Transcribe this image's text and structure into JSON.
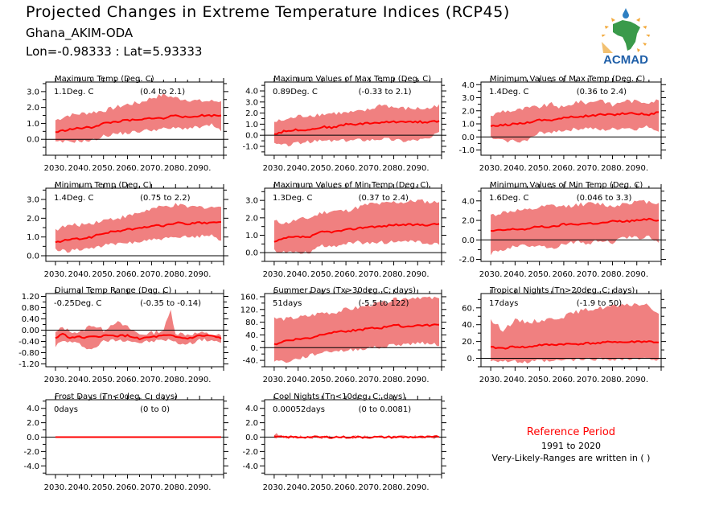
{
  "header": {
    "title": "Projected Changes in Extreme Temperature Indices (RCP45)",
    "station": "Ghana_AKIM-ODA",
    "coords": "Lon=-0.98333 : Lat=5.93333"
  },
  "logo": {
    "text": "ACMAD",
    "colors": {
      "text": "#1f5fa8",
      "map": "#3a9a4a",
      "rays": "#f2a93b",
      "drop": "#2e7fc2"
    }
  },
  "reference": {
    "title": "Reference Period",
    "years": "1991 to 2020",
    "note": "Very-Likely-Ranges are written in ( )"
  },
  "colors": {
    "band": "#f08080",
    "line": "#ff0000",
    "axis": "#000000"
  },
  "chart_data": [
    {
      "type": "area",
      "title": "Maximum Temp (Deg. C)",
      "summary": "1.1Deg. C",
      "range": "(0.4 to 2.1)",
      "xlim": [
        2026,
        2100
      ],
      "ylim": [
        -1.0,
        3.6
      ],
      "xticks": [
        2030,
        2040,
        2050,
        2060,
        2070,
        2080,
        2090
      ],
      "xtick_labels": [
        "2030.",
        "2040.",
        "2050.",
        "2060.",
        "2070.",
        "2080.",
        "2090."
      ],
      "yticks": [
        0,
        1,
        2,
        3
      ],
      "ytick_labels": [
        "0.0",
        "1.0",
        "2.0",
        "3.0"
      ],
      "x": [
        2030,
        2035,
        2040,
        2045,
        2050,
        2055,
        2060,
        2065,
        2070,
        2075,
        2080,
        2085,
        2090,
        2095,
        2099
      ],
      "median": [
        0.45,
        0.6,
        0.7,
        0.75,
        1.0,
        1.1,
        1.2,
        1.2,
        1.35,
        1.3,
        1.55,
        1.35,
        1.5,
        1.5,
        1.5
      ],
      "lower": [
        -0.2,
        -0.15,
        -0.1,
        -0.1,
        0.2,
        0.35,
        0.4,
        0.5,
        0.6,
        0.65,
        0.7,
        0.7,
        0.75,
        0.9,
        0.5
      ],
      "upper": [
        1.2,
        1.5,
        1.6,
        1.7,
        1.8,
        2.0,
        2.2,
        2.3,
        2.6,
        2.8,
        2.6,
        2.5,
        2.4,
        2.4,
        2.4
      ]
    },
    {
      "type": "area",
      "title": "Maximum Values of Max Temp (Deg. C)",
      "summary": "0.89Deg. C",
      "range": "(-0.33 to 2.1)",
      "xlim": [
        2026,
        2100
      ],
      "ylim": [
        -1.8,
        4.8
      ],
      "xticks": [
        2030,
        2040,
        2050,
        2060,
        2070,
        2080,
        2090
      ],
      "xtick_labels": [
        "2030.",
        "2040.",
        "2050.",
        "2060.",
        "2070.",
        "2080.",
        "2090."
      ],
      "yticks": [
        -1,
        0,
        1,
        2,
        3,
        4
      ],
      "ytick_labels": [
        "-1.0",
        "0.0",
        "1.0",
        "2.0",
        "3.0",
        "4.0"
      ],
      "x": [
        2030,
        2035,
        2040,
        2045,
        2050,
        2055,
        2060,
        2065,
        2070,
        2075,
        2080,
        2085,
        2090,
        2095,
        2099
      ],
      "median": [
        0.1,
        0.4,
        0.5,
        0.5,
        0.75,
        0.7,
        1.0,
        1.0,
        1.1,
        1.15,
        1.2,
        1.25,
        1.2,
        1.2,
        1.3
      ],
      "lower": [
        -0.8,
        -0.9,
        -0.7,
        -0.6,
        -0.5,
        -0.5,
        -0.5,
        -0.4,
        -0.4,
        -0.3,
        -0.4,
        -0.5,
        -0.4,
        -0.3,
        0.3
      ],
      "upper": [
        1.2,
        1.4,
        1.7,
        1.8,
        1.9,
        2.0,
        2.0,
        2.1,
        2.3,
        2.8,
        2.5,
        2.4,
        2.4,
        2.4,
        2.8
      ]
    },
    {
      "type": "area",
      "title": "Minimum Values of Max Temp (Deg. C)",
      "summary": "1.4Deg. C",
      "range": "(0.36 to 2.4)",
      "xlim": [
        2026,
        2100
      ],
      "ylim": [
        -1.4,
        4.2
      ],
      "xticks": [
        2030,
        2040,
        2050,
        2060,
        2070,
        2080,
        2090
      ],
      "xtick_labels": [
        "2030.",
        "2040.",
        "2050.",
        "2060.",
        "2070.",
        "2080.",
        "2090."
      ],
      "yticks": [
        -1,
        0,
        1,
        2,
        3,
        4
      ],
      "ytick_labels": [
        "-1.0",
        "0.0",
        "1.0",
        "2.0",
        "3.0",
        "4.0"
      ],
      "x": [
        2030,
        2035,
        2040,
        2045,
        2050,
        2055,
        2060,
        2065,
        2070,
        2075,
        2080,
        2085,
        2090,
        2095,
        2099
      ],
      "median": [
        0.8,
        0.9,
        1.0,
        1.1,
        1.3,
        1.3,
        1.45,
        1.55,
        1.6,
        1.7,
        1.7,
        1.8,
        1.8,
        1.7,
        1.9
      ],
      "lower": [
        -0.1,
        -0.3,
        -0.3,
        -0.3,
        0.3,
        0.4,
        0.5,
        0.6,
        0.7,
        0.5,
        0.6,
        0.7,
        0.6,
        0.8,
        0.4
      ],
      "upper": [
        1.6,
        2.0,
        2.0,
        2.2,
        2.3,
        2.5,
        2.2,
        2.7,
        2.6,
        2.9,
        2.4,
        2.8,
        2.7,
        2.7,
        2.8
      ]
    },
    {
      "type": "area",
      "title": "Minimum Temp (Deg. C)",
      "summary": "1.4Deg. C",
      "range": "(0.75 to 2.2)",
      "xlim": [
        2026,
        2100
      ],
      "ylim": [
        -0.3,
        3.6
      ],
      "xticks": [
        2030,
        2040,
        2050,
        2060,
        2070,
        2080,
        2090
      ],
      "xtick_labels": [
        "2030.",
        "2040.",
        "2050.",
        "2060.",
        "2070.",
        "2080.",
        "2090."
      ],
      "yticks": [
        0,
        1,
        2,
        3
      ],
      "ytick_labels": [
        "0.0",
        "1.0",
        "2.0",
        "3.0"
      ],
      "x": [
        2030,
        2035,
        2040,
        2045,
        2050,
        2055,
        2060,
        2065,
        2070,
        2075,
        2080,
        2085,
        2090,
        2095,
        2099
      ],
      "median": [
        0.7,
        0.85,
        0.9,
        1.0,
        1.2,
        1.3,
        1.4,
        1.45,
        1.6,
        1.6,
        1.75,
        1.7,
        1.75,
        1.75,
        1.8
      ],
      "lower": [
        0.3,
        0.25,
        0.35,
        0.4,
        0.55,
        0.6,
        0.7,
        0.75,
        0.85,
        0.9,
        0.95,
        1.0,
        1.05,
        1.1,
        0.8
      ],
      "upper": [
        1.4,
        1.6,
        1.65,
        1.75,
        1.9,
        2.0,
        2.1,
        2.3,
        2.5,
        2.6,
        2.7,
        2.6,
        2.6,
        2.6,
        2.6
      ]
    },
    {
      "type": "area",
      "title": "Maximum Values of Min Temp (Deg. C)",
      "summary": "1.3Deg. C",
      "range": "(0.37 to 2.4)",
      "xlim": [
        2026,
        2100
      ],
      "ylim": [
        -0.5,
        3.7
      ],
      "xticks": [
        2030,
        2040,
        2050,
        2060,
        2070,
        2080,
        2090
      ],
      "xtick_labels": [
        "2030.",
        "2040.",
        "2050.",
        "2060.",
        "2070.",
        "2080.",
        "2090."
      ],
      "yticks": [
        0,
        1,
        2,
        3
      ],
      "ytick_labels": [
        "0.0",
        "1.0",
        "2.0",
        "3.0"
      ],
      "x": [
        2030,
        2035,
        2040,
        2045,
        2050,
        2055,
        2060,
        2065,
        2070,
        2075,
        2080,
        2085,
        2090,
        2095,
        2099
      ],
      "median": [
        0.6,
        0.85,
        0.9,
        0.9,
        1.2,
        1.2,
        1.3,
        1.4,
        1.5,
        1.5,
        1.6,
        1.6,
        1.6,
        1.6,
        1.65
      ],
      "lower": [
        0.1,
        0.05,
        0.0,
        0.05,
        0.4,
        0.4,
        0.5,
        0.6,
        0.5,
        0.6,
        0.6,
        0.7,
        0.6,
        0.5,
        0.45
      ],
      "upper": [
        1.8,
        1.7,
        1.9,
        2.0,
        2.3,
        2.4,
        2.4,
        2.6,
        2.8,
        2.8,
        2.9,
        2.9,
        3.0,
        2.9,
        2.9
      ]
    },
    {
      "type": "area",
      "title": "Minimum Values of Min Temp (Deg. C)",
      "summary": "1.6Deg. C",
      "range": "(0.046 to 3.3)",
      "xlim": [
        2026,
        2100
      ],
      "ylim": [
        -2.2,
        5.3
      ],
      "xticks": [
        2030,
        2040,
        2050,
        2060,
        2070,
        2080,
        2090
      ],
      "xtick_labels": [
        "2030.",
        "2040.",
        "2050.",
        "2060.",
        "2070.",
        "2080.",
        "2090."
      ],
      "yticks": [
        -2,
        0,
        2,
        4
      ],
      "ytick_labels": [
        "-2.0",
        "0.0",
        "2.0",
        "4.0"
      ],
      "x": [
        2030,
        2035,
        2040,
        2045,
        2050,
        2055,
        2060,
        2065,
        2070,
        2075,
        2080,
        2085,
        2090,
        2095,
        2099
      ],
      "median": [
        0.9,
        1.0,
        1.1,
        1.1,
        1.4,
        1.3,
        1.6,
        1.6,
        1.7,
        1.7,
        1.9,
        1.9,
        2.0,
        2.1,
        2.0
      ],
      "lower": [
        -1.4,
        -1.0,
        -0.6,
        -0.6,
        -0.5,
        -0.9,
        -0.4,
        -0.2,
        -0.4,
        0.0,
        -0.3,
        0.3,
        0.2,
        0.3,
        -0.3
      ],
      "upper": [
        2.5,
        2.8,
        3.0,
        3.0,
        3.3,
        3.5,
        3.4,
        3.6,
        3.7,
        3.7,
        3.4,
        3.8,
        3.9,
        3.9,
        3.8
      ]
    },
    {
      "type": "area",
      "title": "Diurnal Temp Range (Deg. C)",
      "summary": "-0.25Deg. C",
      "range": "(-0.35 to -0.14)",
      "xlim": [
        2026,
        2100
      ],
      "ylim": [
        -1.3,
        1.3
      ],
      "xticks": [
        2030,
        2040,
        2050,
        2060,
        2070,
        2080,
        2090
      ],
      "xtick_labels": [
        "2030.",
        "2040.",
        "2050.",
        "2060.",
        "2070.",
        "2080.",
        "2090."
      ],
      "yticks": [
        -1.2,
        -0.8,
        -0.4,
        0.0,
        0.4,
        0.8,
        1.2
      ],
      "ytick_labels": [
        "-1.20",
        "-0.80",
        "-0.40",
        "0.00",
        "0.40",
        "0.80",
        "1.20"
      ],
      "x": [
        2030,
        2033,
        2035,
        2040,
        2045,
        2050,
        2055,
        2060,
        2065,
        2070,
        2075,
        2078,
        2080,
        2085,
        2090,
        2095,
        2099
      ],
      "median": [
        -0.3,
        -0.1,
        -0.25,
        -0.25,
        -0.25,
        -0.2,
        -0.2,
        -0.2,
        -0.3,
        -0.25,
        -0.2,
        -0.2,
        -0.25,
        -0.3,
        -0.2,
        -0.2,
        -0.3
      ],
      "lower": [
        -0.55,
        -0.4,
        -0.4,
        -0.5,
        -0.7,
        -0.4,
        -0.35,
        -0.35,
        -0.45,
        -0.4,
        -0.35,
        -0.35,
        -0.45,
        -0.5,
        -0.35,
        -0.35,
        -0.45
      ],
      "upper": [
        -0.1,
        0.1,
        0.0,
        -0.1,
        0.2,
        0.0,
        0.3,
        0.1,
        -0.15,
        -0.1,
        0.0,
        0.7,
        -0.1,
        -0.15,
        -0.1,
        -0.15,
        -0.2
      ]
    },
    {
      "type": "area",
      "title": "Summer Days (Tx>30deg. C; days)",
      "summary": "51days",
      "range": "(-5.5 to 122)",
      "xlim": [
        2026,
        2100
      ],
      "ylim": [
        -60,
        170
      ],
      "xticks": [
        2030,
        2040,
        2050,
        2060,
        2070,
        2080,
        2090
      ],
      "xtick_labels": [
        "2030.",
        "2040.",
        "2050.",
        "2060.",
        "2070.",
        "2080.",
        "2090."
      ],
      "yticks": [
        -40,
        0,
        40,
        80,
        120,
        160
      ],
      "ytick_labels": [
        "-40.",
        "0.",
        "40.",
        "80.",
        "120.",
        "160."
      ],
      "x": [
        2030,
        2035,
        2040,
        2045,
        2050,
        2055,
        2060,
        2065,
        2070,
        2075,
        2080,
        2085,
        2090,
        2095,
        2099
      ],
      "median": [
        10,
        22,
        27,
        30,
        42,
        50,
        52,
        55,
        60,
        62,
        72,
        66,
        70,
        70,
        72
      ],
      "lower": [
        -40,
        -45,
        -35,
        -25,
        -15,
        -10,
        -10,
        -5,
        0,
        0,
        10,
        10,
        15,
        15,
        5
      ],
      "upper": [
        92,
        90,
        95,
        100,
        110,
        110,
        120,
        125,
        135,
        140,
        150,
        155,
        160,
        155,
        155
      ]
    },
    {
      "type": "area",
      "title": "Tropical Nights (Tn>20deg. C; days)",
      "summary": "17days",
      "range": "(-1.9 to 50)",
      "xlim": [
        2026,
        2100
      ],
      "ylim": [
        -10,
        77
      ],
      "xticks": [
        2030,
        2040,
        2050,
        2060,
        2070,
        2080,
        2090
      ],
      "xtick_labels": [
        "2030.",
        "2040.",
        "2050.",
        "2060.",
        "2070.",
        "2080.",
        "2090."
      ],
      "yticks": [
        0,
        20,
        40,
        60
      ],
      "ytick_labels": [
        "0.",
        "20.",
        "40.",
        "60."
      ],
      "x": [
        2030,
        2035,
        2040,
        2045,
        2050,
        2055,
        2060,
        2065,
        2070,
        2075,
        2080,
        2085,
        2090,
        2095,
        2099
      ],
      "median": [
        13,
        12,
        14,
        13,
        16,
        16,
        17,
        17,
        18,
        18,
        20,
        19,
        20,
        20,
        19
      ],
      "lower": [
        -2,
        -3,
        -4,
        -5,
        -3,
        -4,
        -2,
        -2,
        -1,
        -1,
        -1,
        -1,
        -1,
        -1,
        -1
      ],
      "upper": [
        45,
        34,
        45,
        43,
        45,
        47,
        50,
        55,
        58,
        60,
        62,
        62,
        65,
        62,
        53
      ]
    },
    {
      "type": "area",
      "title": "Frost Days (Tn<0deg. C; days)",
      "summary": "0days",
      "range": "(0 to 0)",
      "xlim": [
        2026,
        2100
      ],
      "ylim": [
        -5.2,
        5.2
      ],
      "xticks": [
        2030,
        2040,
        2050,
        2060,
        2070,
        2080,
        2090
      ],
      "xtick_labels": [
        "2030.",
        "2040.",
        "2050.",
        "2060.",
        "2070.",
        "2080.",
        "2090."
      ],
      "yticks": [
        -4,
        -2,
        0,
        2,
        4
      ],
      "ytick_labels": [
        "-4.0",
        "-2.0",
        "0.0",
        "2.0",
        "4.0"
      ],
      "x": [
        2030,
        2099
      ],
      "median": [
        0,
        0
      ],
      "lower": [
        0,
        0
      ],
      "upper": [
        0,
        0
      ]
    },
    {
      "type": "area",
      "title": "Cool Nights (Tn<10deg. C; days)",
      "summary": "0.00052days",
      "range": "(0 to 0.0081)",
      "xlim": [
        2026,
        2100
      ],
      "ylim": [
        -5.2,
        5.2
      ],
      "xticks": [
        2030,
        2040,
        2050,
        2060,
        2070,
        2080,
        2090
      ],
      "xtick_labels": [
        "2030.",
        "2040.",
        "2050.",
        "2060.",
        "2070.",
        "2080.",
        "2090."
      ],
      "yticks": [
        -4,
        -2,
        0,
        2,
        4
      ],
      "ytick_labels": [
        "-4.0",
        "-2.0",
        "0.0",
        "2.0",
        "4.0"
      ],
      "x": [
        2030,
        2031,
        2032,
        2033,
        2099
      ],
      "median": [
        0,
        0.02,
        0.03,
        0,
        0
      ],
      "lower": [
        0,
        0,
        0,
        0,
        0
      ],
      "upper": [
        0,
        0.3,
        0.4,
        0,
        0
      ]
    }
  ]
}
